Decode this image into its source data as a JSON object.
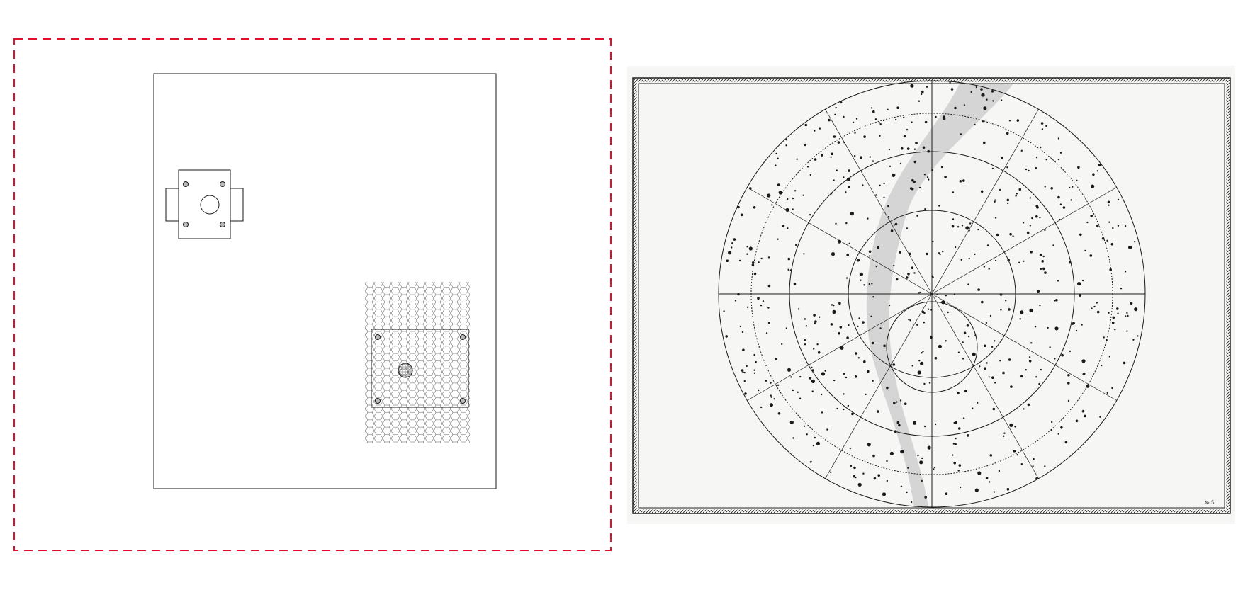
{
  "figure": {
    "left_panel": {
      "kind": "plan drawing",
      "selection_outline_color": "#e0102a",
      "line_color": "#1a1a1a",
      "elements": [
        "outer-boundary",
        "small-square-unit-with-side-tabs",
        "hexagon-hatched-field",
        "rectangular-unit-with-four-bolts"
      ]
    },
    "right_panel": {
      "kind": "engraved star chart",
      "ink_color": "#1a1a1a",
      "paper_color": "#f6f6f4",
      "milky_way_color": "#c8c8c8",
      "plate_number": "№ 5"
    }
  }
}
